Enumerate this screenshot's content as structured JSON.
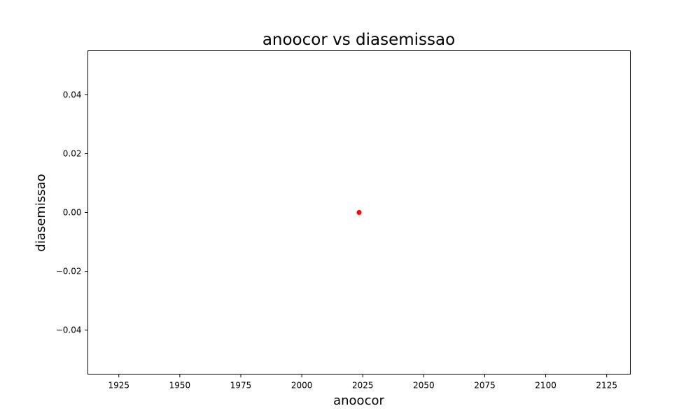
{
  "chart_data": {
    "type": "scatter",
    "title": "anoocor vs diasemissao",
    "xlabel": "anoocor",
    "ylabel": "diasemissao",
    "xlim": [
      1912.3,
      2134.7
    ],
    "ylim": [
      -0.055,
      0.055
    ],
    "x_ticks": [
      1925,
      1950,
      1975,
      2000,
      2025,
      2050,
      2075,
      2100,
      2125
    ],
    "y_ticks": [
      -0.04,
      -0.02,
      0.0,
      0.02,
      0.04
    ],
    "x_tick_labels": [
      "1925",
      "1950",
      "1975",
      "2000",
      "2025",
      "2050",
      "2075",
      "2100",
      "2125"
    ],
    "y_tick_labels": [
      "−0.04",
      "−0.02",
      "0.00",
      "0.02",
      "0.04"
    ],
    "grid": false,
    "legend": "none",
    "point_color": "#ff0000",
    "points": [
      {
        "x": 2023.5,
        "y": 0.0
      }
    ]
  }
}
